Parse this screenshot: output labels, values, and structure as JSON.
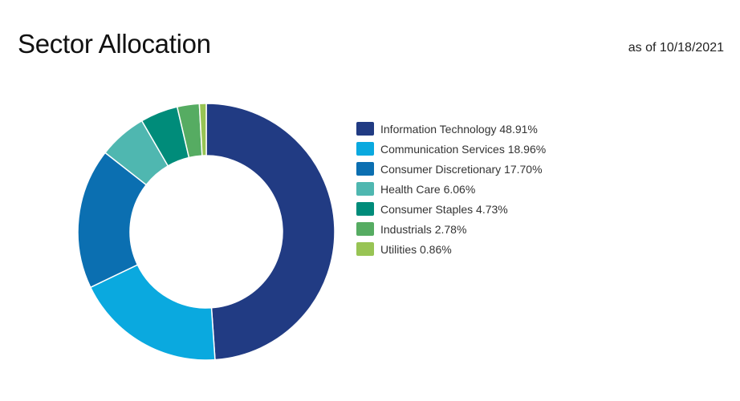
{
  "header": {
    "title": "Sector Allocation",
    "as_of": "as of 10/18/2021"
  },
  "chart_data": {
    "type": "pie",
    "variant": "donut",
    "title": "Sector Allocation",
    "categories": [
      "Information Technology",
      "Communication Services",
      "Consumer Discretionary",
      "Health Care",
      "Consumer Staples",
      "Industrials",
      "Utilities"
    ],
    "values": [
      48.91,
      18.96,
      17.7,
      6.06,
      4.73,
      2.78,
      0.86
    ],
    "value_labels": [
      "48.91%",
      "18.96%",
      "17.70%",
      "6.06%",
      "4.73%",
      "2.78%",
      "0.86%"
    ],
    "colors": [
      "#213b83",
      "#0aa9df",
      "#0b6fb1",
      "#4fb7b0",
      "#008c7a",
      "#56ac62",
      "#98c454"
    ],
    "legend": "right",
    "start": "top",
    "direction": "clockwise"
  }
}
